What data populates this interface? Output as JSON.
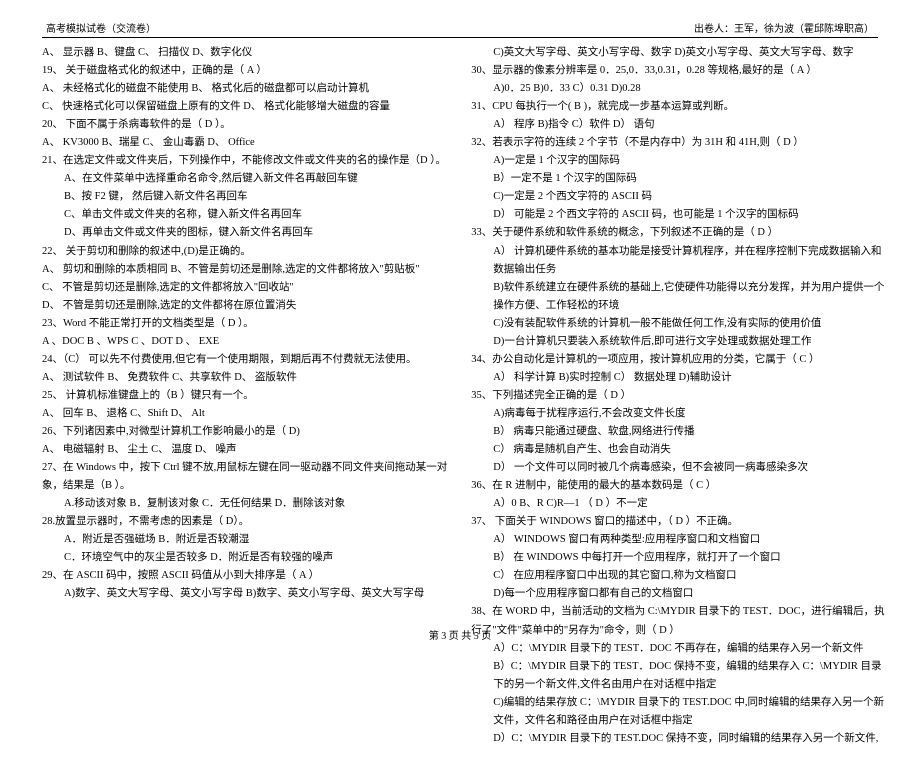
{
  "header": {
    "left": "高考模拟试卷（交流卷）",
    "right": "出卷人：王军，徐为波（霍邱陈埠职高）"
  },
  "left_lines": [
    {
      "t": "A、 显示器           B、键盘               C、 扫描仪              D、数字化仪",
      "cls": ""
    },
    {
      "t": "19、 关于磁盘格式化的叙述中，正确的是（ A ）",
      "cls": ""
    },
    {
      "t": "A、 未经格式化的磁盘不能使用           B、 格式化后的磁盘都可以启动计算机",
      "cls": ""
    },
    {
      "t": "C、 快速格式化可以保留磁盘上原有的文件   D、 格式化能够增大磁盘的容量",
      "cls": ""
    },
    {
      "t": "20、 下面不属于杀病毒软件的是（  D ）。",
      "cls": ""
    },
    {
      "t": "A、 KV3000       B、瑞星         C、 金山毒霸           D、 Office",
      "cls": ""
    },
    {
      "t": "21、在选定文件或文件夹后，下列操作中，不能修改文件或文件夹的名的操作是（D  ）。",
      "cls": ""
    },
    {
      "t": "A、在文件菜单中选择重命名命令,然后键入新文件名再敲回车键",
      "cls": "indent1"
    },
    {
      "t": "B、按 F2 键，  然后键入新文件名再回车",
      "cls": "indent1"
    },
    {
      "t": "C、单击文件或文件夹的名称，键入新文件名再回车",
      "cls": "indent1"
    },
    {
      "t": "D、再单击文件或文件夹的图标，键入新文件名再回车",
      "cls": "indent1"
    },
    {
      "t": "22、 关于剪切和删除的叙述中,(D)是正确的。",
      "cls": ""
    },
    {
      "t": "A、 剪切和删除的本质相同   B、不管是剪切还是删除,选定的文件都将放入\"剪贴板\"",
      "cls": ""
    },
    {
      "t": "C、 不管是剪切还是删除,选定的文件都将放入\"回收站\"",
      "cls": ""
    },
    {
      "t": "D、 不管是剪切还是删除,选定的文件都将在原位置消失",
      "cls": ""
    },
    {
      "t": "23、Word 不能正常打开的文档类型是（ D ）。",
      "cls": ""
    },
    {
      "t": "A  、DOC           B  、WPS           C  、DOT           D  、 EXE",
      "cls": ""
    },
    {
      "t": "24、（C） 可以先不付费使用,但它有一个使用期限，到期后再不付费就无法使用。",
      "cls": ""
    },
    {
      "t": "A、 测试软件       B、 免费软件       C、共享软件       D、 盗版软件",
      "cls": ""
    },
    {
      "t": "25、 计算机标准键盘上的（B ）键只有一个。",
      "cls": ""
    },
    {
      "t": "A、 回车           B、 退格           C、Shift           D、 Alt",
      "cls": ""
    },
    {
      "t": "26、下列诸因素中,对微型计算机工作影响最小的是（  D)",
      "cls": ""
    },
    {
      "t": "A、 电磁辐射       B、 尘土           C、 温度           D、 噪声",
      "cls": ""
    },
    {
      "t": "27、在 Windows 中，按下 Ctrl 键不放,用鼠标左键在同一驱动器不同文件夹间拖动某一对",
      "cls": ""
    },
    {
      "t": "象，结果是（B  ）。",
      "cls": ""
    },
    {
      "t": "A.移动该对象    B．复制该对象    C．无任何结果    D．删除该对象",
      "cls": "indent1"
    },
    {
      "t": "28.放置显示器时，不需考虑的因素是（  D）。",
      "cls": ""
    },
    {
      "t": "A．附近是否强磁场              B．附近是否较潮湿",
      "cls": "indent1"
    },
    {
      "t": "C．环境空气中的灰尘是否较多    D．附近是否有较强的噪声",
      "cls": "indent1"
    },
    {
      "t": "29、在 ASCII 码中，按照 ASCII 码值从小到大排序是（    A   ）",
      "cls": ""
    },
    {
      "t": "A)数字、英文大写字母、英文小写字母    B)数字、英文小写字母、英文大写字母",
      "cls": "indent1"
    }
  ],
  "right_lines": [
    {
      "t": "C)英文大写字母、英文小写字母、数字   D)英文小写字母、英文大写字母、数字",
      "cls": "indent1"
    },
    {
      "t": "30、显示器的像素分辨率是 0．25,0．33,0.31，0.28 等规格,最好的是（ A ）",
      "cls": ""
    },
    {
      "t": "A)0．25       B)0．33       C）0.31       D)0.28",
      "cls": "indent1"
    },
    {
      "t": "31、CPU 每执行一个(  B   )，就完成一步基本运算或判断。",
      "cls": ""
    },
    {
      "t": "A） 程序       B)指令     C）软件      D） 语句",
      "cls": "indent1"
    },
    {
      "t": "32、若表示字符的连续 2 个字节（不是内存中）为 31H 和 41H,则（    D   ）",
      "cls": ""
    },
    {
      "t": "A)一定是 1 个汉字的国际码",
      "cls": "indent1"
    },
    {
      "t": "B）一定不是 1 个汉字的国际码",
      "cls": "indent1"
    },
    {
      "t": "C)一定是 2 个西文字符的 ASCII 码",
      "cls": "indent1"
    },
    {
      "t": "D） 可能是 2 个西文字符的 ASCII 码，也可能是 1 个汉字的国标码",
      "cls": "indent1"
    },
    {
      "t": "33、关于硬件系统和软件系统的概念，下列叙述不正确的是（    D   ）",
      "cls": ""
    },
    {
      "t": "A） 计算机硬件系统的基本功能是接受计算机程序，并在程序控制下完成数据输入和",
      "cls": "indent1"
    },
    {
      "t": "数据输出任务",
      "cls": "indent1"
    },
    {
      "t": "B)软件系统建立在硬件系统的基础上,它使硬件功能得以充分发挥，并为用户提供一个",
      "cls": "indent1"
    },
    {
      "t": "操作方便、工作轻松的环境",
      "cls": "indent1"
    },
    {
      "t": "C)没有装配软件系统的计算机一般不能做任何工作,没有实际的使用价值",
      "cls": "indent1"
    },
    {
      "t": "D)一台计算机只要装入系统软件后,即可进行文字处理或数据处理工作",
      "cls": "indent1"
    },
    {
      "t": "34、办公自动化是计算机的一项应用，按计算机应用的分类，它属于（   C  ）",
      "cls": ""
    },
    {
      "t": "A） 科学计算    B)实时控制    C） 数据处理       D)辅助设计",
      "cls": "indent1"
    },
    {
      "t": "35、下列描述完全正确的是（   D  ）",
      "cls": ""
    },
    {
      "t": "A)病毒每于扰程序运行,不会改变文件长度",
      "cls": "indent1"
    },
    {
      "t": "B） 病毒只能通过硬盘、软盘,网络进行传播",
      "cls": "indent1"
    },
    {
      "t": "C） 病毒是随机自产生、也会自动消失",
      "cls": "indent1"
    },
    {
      "t": "D） 一个文件可以同时被几个病毒感染，但不会被同一病毒感染多次",
      "cls": "indent1"
    },
    {
      "t": "36、在 R 进制中，能使用的最大的基本数码是（  C  ）",
      "cls": ""
    },
    {
      "t": "A）0       B、R       C)R—1        （ D ）不一定",
      "cls": "indent1"
    },
    {
      "t": "37、 下面关于 WINDOWS 窗口的描述中，（  D  ）不正确。",
      "cls": ""
    },
    {
      "t": "A） WINDOWS 窗口有两种类型:应用程序窗口和文档窗口",
      "cls": "indent1"
    },
    {
      "t": "B） 在 WINDOWS 中每打开一个应用程序，就打开了一个窗口",
      "cls": "indent1"
    },
    {
      "t": "C） 在应用程序窗口中出现的其它窗口,称为文档窗口",
      "cls": "indent1"
    },
    {
      "t": "D)每一个应用程序窗口都有自己的文档窗口",
      "cls": "indent1"
    },
    {
      "t": "38、在 WORD 中，当前活动的文档为 C:\\MYDIR 目录下的 TEST．DOC，进行编辑后，执",
      "cls": ""
    },
    {
      "t": "行了\"文件\"菜单中的\"另存为\"命令，则（  D  ）",
      "cls": ""
    },
    {
      "t": "A）C：\\MYDIR 目录下的 TEST．DOC 不再存在，编辑的结果存入另一个新文件",
      "cls": "indent1"
    },
    {
      "t": "B）C：\\MYDIR 目录下的 TEST．DOC 保持不变，编辑的结果存入 C：\\MYDIR 目录",
      "cls": "indent1"
    },
    {
      "t": "下的另一个新文件,文件名由用户在对话框中指定",
      "cls": "indent1"
    },
    {
      "t": "C)编辑的结果存放 C：\\MYDIR 目录下的 TEST.DOC 中,同时编辑的结果存入另一个新",
      "cls": "indent1"
    },
    {
      "t": "文件，文件名和路径由用户在对话框中指定",
      "cls": "indent1"
    },
    {
      "t": "D）C：\\MYDIR 目录下的 TEST.DOC 保持不变，同时编辑的结果存入另一个新文件,",
      "cls": "indent1"
    }
  ],
  "footer": "第  3  页  共  5 页"
}
